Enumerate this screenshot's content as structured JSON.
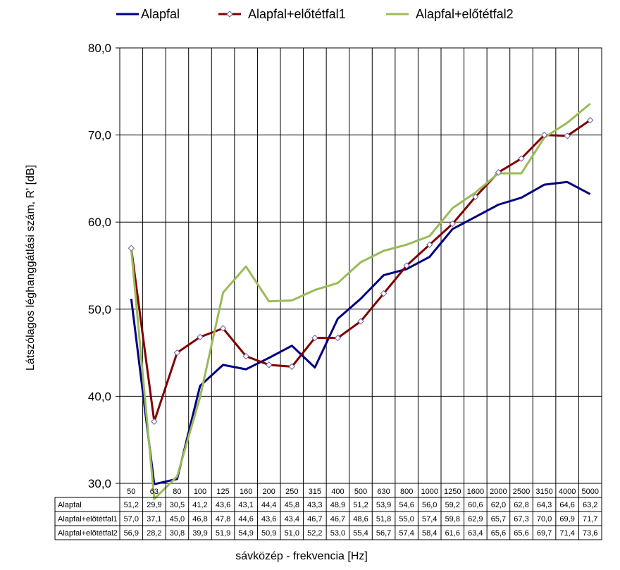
{
  "chart_data": {
    "type": "line",
    "ylabel": "Látszólagos léghanggátlási szám, R' [dB]",
    "xlabel": "sávközép - frekvencia [Hz]",
    "ylim": [
      30,
      80
    ],
    "yticks": [
      "30,0",
      "40,0",
      "50,0",
      "60,0",
      "70,0",
      "80,0"
    ],
    "grid": true,
    "legend_position": "top",
    "categories": [
      "50",
      "63",
      "80",
      "100",
      "125",
      "160",
      "200",
      "250",
      "315",
      "400",
      "500",
      "630",
      "800",
      "1000",
      "1250",
      "1600",
      "2000",
      "2500",
      "3150",
      "4000",
      "5000"
    ],
    "series": [
      {
        "name": "Alapfal",
        "color": "#000080",
        "marker": "none",
        "values": [
          51.2,
          29.9,
          30.5,
          41.2,
          43.6,
          43.1,
          44.4,
          45.8,
          43.3,
          48.9,
          51.2,
          53.9,
          54.6,
          56.0,
          59.2,
          60.6,
          62.0,
          62.8,
          64.3,
          64.6,
          63.2
        ],
        "labels": [
          "51,2",
          "29,9",
          "30,5",
          "41,2",
          "43,6",
          "43,1",
          "44,4",
          "45,8",
          "43,3",
          "48,9",
          "51,2",
          "53,9",
          "54,6",
          "56,0",
          "59,2",
          "60,6",
          "62,0",
          "62,8",
          "64,3",
          "64,6",
          "63,2"
        ]
      },
      {
        "name": "Alapfal+előtétfal1",
        "table_name": "Alapfal+elõtétfal1",
        "color": "#800000",
        "marker": "diamond",
        "values": [
          57.0,
          37.1,
          45.0,
          46.8,
          47.8,
          44.6,
          43.6,
          43.4,
          46.7,
          46.7,
          48.6,
          51.8,
          55.0,
          57.4,
          59.8,
          62.9,
          65.7,
          67.3,
          70.0,
          69.9,
          71.7
        ],
        "labels": [
          "57,0",
          "37,1",
          "45,0",
          "46,8",
          "47,8",
          "44,6",
          "43,6",
          "43,4",
          "46,7",
          "46,7",
          "48,6",
          "51,8",
          "55,0",
          "57,4",
          "59,8",
          "62,9",
          "65,7",
          "67,3",
          "70,0",
          "69,9",
          "71,7"
        ]
      },
      {
        "name": "Alapfal+előtétfal2",
        "table_name": "Alapfal+elõtétfal2",
        "color": "#9bbb59",
        "marker": "none",
        "values": [
          56.9,
          28.2,
          30.8,
          39.9,
          51.9,
          54.9,
          50.9,
          51.0,
          52.2,
          53.0,
          55.4,
          56.7,
          57.4,
          58.4,
          61.6,
          63.4,
          65.6,
          65.6,
          69.7,
          71.4,
          73.6
        ],
        "labels": [
          "56,9",
          "28,2",
          "30,8",
          "39,9",
          "51,9",
          "54,9",
          "50,9",
          "51,0",
          "52,2",
          "53,0",
          "55,4",
          "56,7",
          "57,4",
          "58,4",
          "61,6",
          "63,4",
          "65,6",
          "65,6",
          "69,7",
          "71,4",
          "73,6"
        ]
      }
    ]
  }
}
